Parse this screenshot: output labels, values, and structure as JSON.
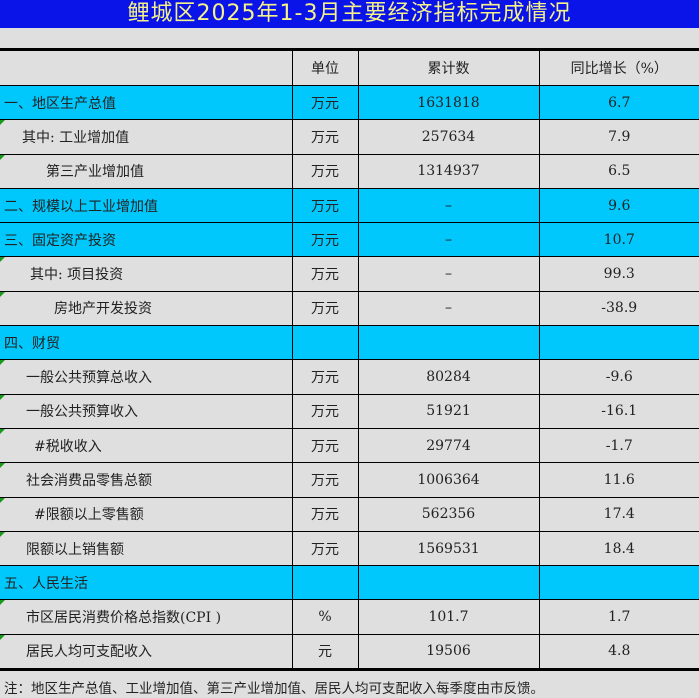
{
  "title": "鲤城区2025年1-3月主要经济指标完成情况",
  "headers": [
    "",
    "单位",
    "累计数",
    "同比增长（%）"
  ],
  "rows": [
    {
      "label": "一、地区生产总值",
      "unit": "万元",
      "total": "1631818",
      "growth": "6.7",
      "highlight": true,
      "indent": 0
    },
    {
      "label": "其中: 工业增加值",
      "unit": "万元",
      "total": "257634",
      "growth": "7.9",
      "highlight": false,
      "indent": 18
    },
    {
      "label": "第三产业增加值",
      "unit": "万元",
      "total": "1314937",
      "growth": "6.5",
      "highlight": false,
      "indent": 42
    },
    {
      "label": "二、规模以上工业增加值",
      "unit": "万元",
      "total": "–",
      "growth": "9.6",
      "highlight": true,
      "indent": 0
    },
    {
      "label": "三、固定资产投资",
      "unit": "万元",
      "total": "–",
      "growth": "10.7",
      "highlight": true,
      "indent": 0
    },
    {
      "label": "其中: 项目投资",
      "unit": "万元",
      "total": "–",
      "growth": "99.3",
      "highlight": false,
      "indent": 26
    },
    {
      "label": "房地产开发投资",
      "unit": "万元",
      "total": "–",
      "growth": "-38.9",
      "highlight": false,
      "indent": 50
    },
    {
      "label": "四、财贸",
      "unit": "",
      "total": "",
      "growth": "",
      "highlight": true,
      "indent": 0
    },
    {
      "label": "一般公共预算总收入",
      "unit": "万元",
      "total": "80284",
      "growth": "-9.6",
      "highlight": false,
      "indent": 22
    },
    {
      "label": "一般公共预算收入",
      "unit": "万元",
      "total": "51921",
      "growth": "-16.1",
      "highlight": false,
      "indent": 22
    },
    {
      "label": "#税收收入",
      "unit": "万元",
      "total": "29774",
      "growth": "-1.7",
      "highlight": false,
      "indent": 30
    },
    {
      "label": "社会消费品零售总额",
      "unit": "万元",
      "total": "1006364",
      "growth": "11.6",
      "highlight": false,
      "indent": 22
    },
    {
      "label": "#限额以上零售额",
      "unit": "万元",
      "total": "562356",
      "growth": "17.4",
      "highlight": false,
      "indent": 30
    },
    {
      "label": "限额以上销售额",
      "unit": "万元",
      "total": "1569531",
      "growth": "18.4",
      "highlight": false,
      "indent": 22
    },
    {
      "label": "五、人民生活",
      "unit": "",
      "total": "",
      "growth": "",
      "highlight": true,
      "indent": 0
    },
    {
      "label": "市区居民消费价格总指数(CPI )",
      "unit": "%",
      "total": "101.7",
      "growth": "1.7",
      "highlight": false,
      "indent": 22
    },
    {
      "label": "居民人均可支配收入",
      "unit": "元",
      "total": "19506",
      "growth": "4.8",
      "highlight": false,
      "indent": 22
    }
  ],
  "note": "注：地区生产总值、工业增加值、第三产业增加值、居民人均可支配收入每季度由市反馈。",
  "colors": {
    "title_bg": "#0a14e8",
    "title_text": "#f4f08a",
    "highlight": "#00c8fc",
    "background": "#dfdfdf"
  }
}
